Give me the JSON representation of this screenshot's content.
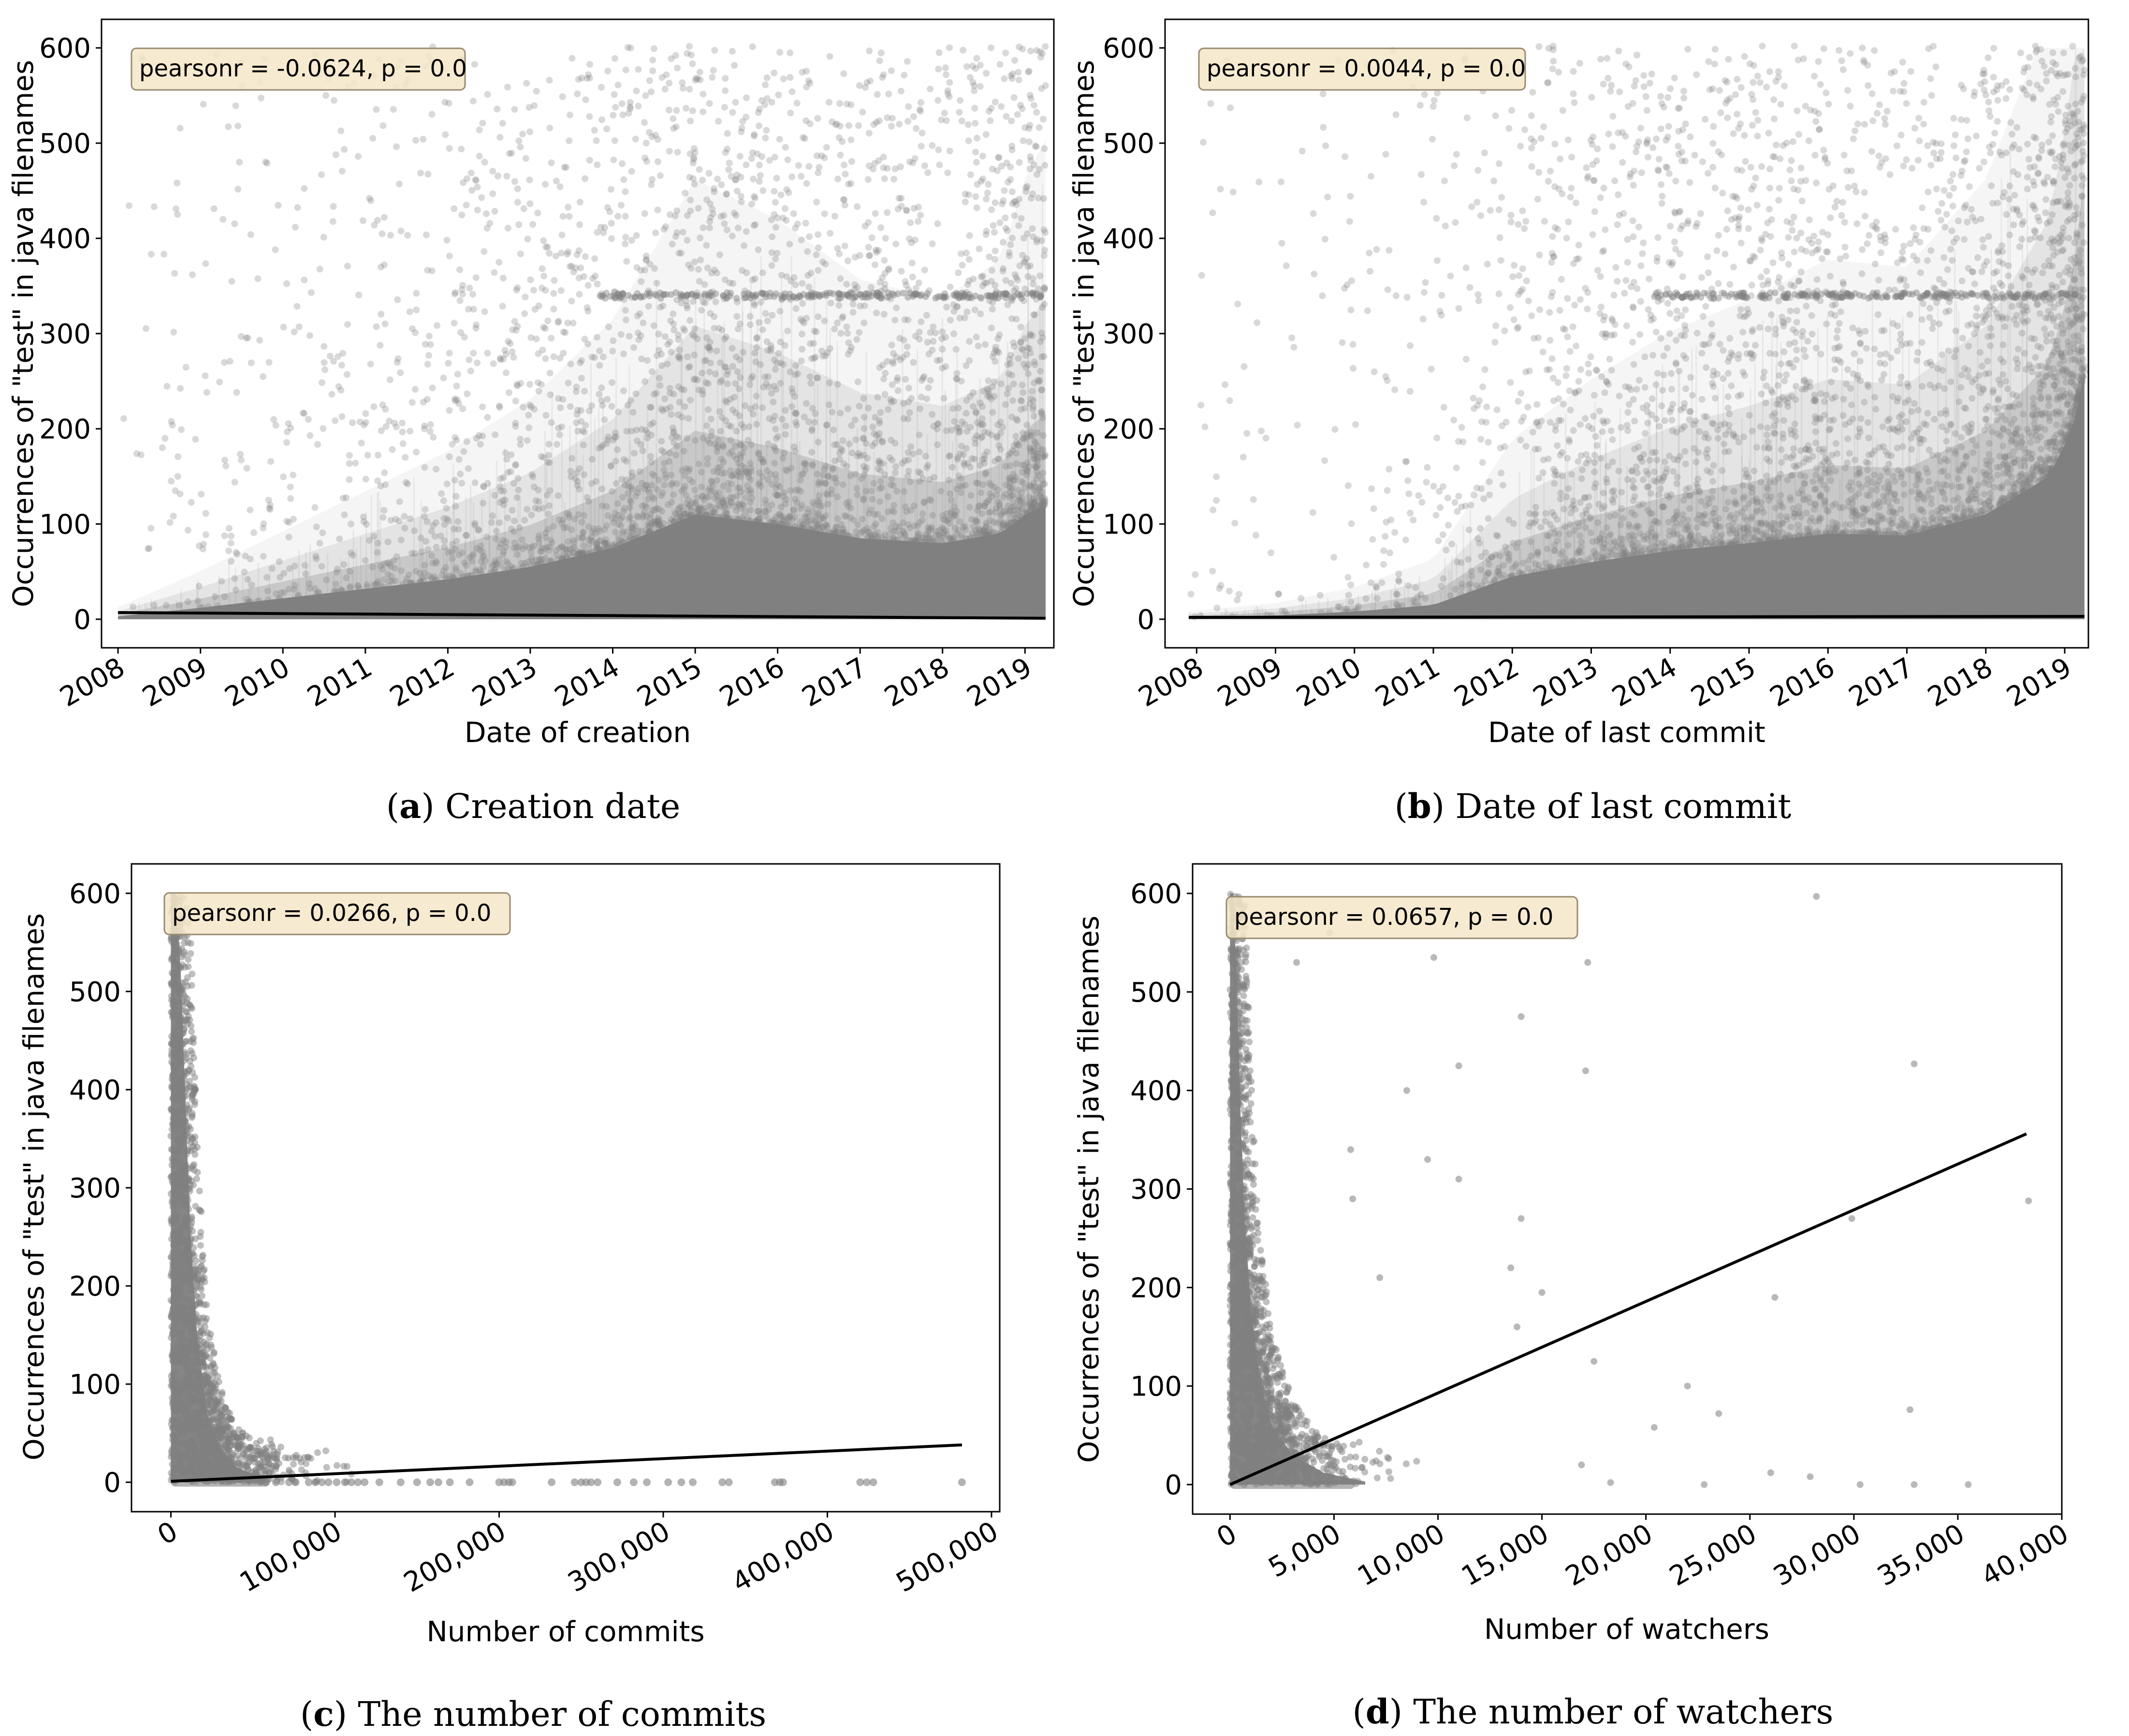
{
  "chart_data": [
    {
      "id": "a",
      "type": "scatter",
      "caption_letter": "a",
      "caption_text": "Creation date",
      "xlabel": "Date of creation",
      "ylabel": "Occurrences of \"test\" in java filenames",
      "stat_text": "pearsonr = -0.0624, p = 0.0",
      "xlim": [
        2007.8,
        2019.35
      ],
      "ylim": [
        -30,
        630
      ],
      "x_ticks": [
        2008,
        2009,
        2010,
        2011,
        2012,
        2013,
        2014,
        2015,
        2016,
        2017,
        2018,
        2019
      ],
      "x_tick_labels": [
        "2008",
        "2009",
        "2010",
        "2011",
        "2012",
        "2013",
        "2014",
        "2015",
        "2016",
        "2017",
        "2018",
        "2019"
      ],
      "y_ticks": [
        0,
        100,
        200,
        300,
        400,
        500,
        600
      ],
      "y_tick_labels": [
        "0",
        "100",
        "200",
        "300",
        "400",
        "500",
        "600"
      ],
      "point_color": "#808080",
      "point_opacity": 0.3,
      "x_range": [
        2008.0,
        2019.25
      ],
      "y_max": 600,
      "band_y": 340,
      "band_x_range": [
        2013.8,
        2019.2
      ],
      "regression": {
        "x": [
          2008.0,
          2019.25
        ],
        "y": [
          7,
          1
        ]
      },
      "bulk": [
        [
          2008.0,
          3
        ],
        [
          2009.0,
          12
        ],
        [
          2010.0,
          22
        ],
        [
          2011.0,
          32
        ],
        [
          2012.0,
          42
        ],
        [
          2013.0,
          55
        ],
        [
          2014.0,
          75
        ],
        [
          2015.0,
          110
        ],
        [
          2016.0,
          100
        ],
        [
          2017.0,
          85
        ],
        [
          2018.0,
          80
        ],
        [
          2018.7,
          90
        ],
        [
          2019.0,
          110
        ],
        [
          2019.25,
          120
        ]
      ],
      "density": [
        [
          2008.0,
          0.15
        ],
        [
          2009.0,
          0.5
        ],
        [
          2010.0,
          0.8
        ],
        [
          2011.0,
          1.2
        ],
        [
          2012.0,
          1.6
        ],
        [
          2013.0,
          2.0
        ],
        [
          2014.0,
          2.6
        ],
        [
          2015.0,
          3.2
        ],
        [
          2016.0,
          2.8
        ],
        [
          2017.0,
          2.5
        ],
        [
          2018.0,
          2.2
        ],
        [
          2019.0,
          4.5
        ],
        [
          2019.25,
          5.5
        ]
      ],
      "bulk_style": "gradient"
    },
    {
      "id": "b",
      "type": "scatter",
      "caption_letter": "b",
      "caption_text": "Date of last commit",
      "xlabel": "Date of last commit",
      "ylabel": "Occurrences of \"test\" in java filenames",
      "stat_text": "pearsonr = 0.0044, p = 0.0",
      "xlim": [
        2007.6,
        2019.3
      ],
      "ylim": [
        -30,
        630
      ],
      "x_ticks": [
        2008,
        2009,
        2010,
        2011,
        2012,
        2013,
        2014,
        2015,
        2016,
        2017,
        2018,
        2019
      ],
      "x_tick_labels": [
        "2008",
        "2009",
        "2010",
        "2011",
        "2012",
        "2013",
        "2014",
        "2015",
        "2016",
        "2017",
        "2018",
        "2019"
      ],
      "y_ticks": [
        0,
        100,
        200,
        300,
        400,
        500,
        600
      ],
      "y_tick_labels": [
        "0",
        "100",
        "200",
        "300",
        "400",
        "500",
        "600"
      ],
      "point_color": "#808080",
      "point_opacity": 0.3,
      "x_range": [
        2007.9,
        2019.25
      ],
      "y_max": 600,
      "band_y": 340,
      "band_x_range": [
        2013.8,
        2019.2
      ],
      "regression": {
        "x": [
          2007.9,
          2019.25
        ],
        "y": [
          2,
          3
        ]
      },
      "bulk": [
        [
          2007.9,
          2
        ],
        [
          2009.0,
          4
        ],
        [
          2010.0,
          8
        ],
        [
          2011.0,
          15
        ],
        [
          2012.0,
          45
        ],
        [
          2013.0,
          60
        ],
        [
          2014.0,
          72
        ],
        [
          2015.0,
          80
        ],
        [
          2016.0,
          90
        ],
        [
          2017.0,
          88
        ],
        [
          2018.0,
          110
        ],
        [
          2018.8,
          150
        ],
        [
          2019.1,
          200
        ],
        [
          2019.25,
          260
        ]
      ],
      "density": [
        [
          2007.9,
          0.2
        ],
        [
          2009.0,
          0.3
        ],
        [
          2010.0,
          0.5
        ],
        [
          2011.0,
          0.8
        ],
        [
          2012.0,
          1.6
        ],
        [
          2013.0,
          2.2
        ],
        [
          2014.0,
          2.8
        ],
        [
          2015.0,
          3.0
        ],
        [
          2016.0,
          3.0
        ],
        [
          2017.0,
          2.8
        ],
        [
          2018.0,
          3.2
        ],
        [
          2019.0,
          5.5
        ],
        [
          2019.25,
          7.0
        ]
      ],
      "bulk_style": "gradient"
    },
    {
      "id": "c",
      "type": "scatter",
      "caption_letter": "c",
      "caption_text": "The number of commits",
      "xlabel": "Number of commits",
      "ylabel": "Occurrences of \"test\" in java filenames",
      "stat_text": "pearsonr = 0.0266, p = 0.0",
      "xlim": [
        -24000,
        505000
      ],
      "ylim": [
        -30,
        630
      ],
      "x_ticks": [
        0,
        100000,
        200000,
        300000,
        400000,
        500000
      ],
      "x_tick_labels": [
        "0",
        "100,000",
        "200,000",
        "300,000",
        "400,000",
        "500,000"
      ],
      "y_ticks": [
        0,
        100,
        200,
        300,
        400,
        500,
        600
      ],
      "y_tick_labels": [
        "0",
        "100",
        "200",
        "300",
        "400",
        "500",
        "600"
      ],
      "point_color": "#808080",
      "point_opacity": 0.5,
      "y_max": 600,
      "regression": {
        "x": [
          0,
          482000
        ],
        "y": [
          1,
          38
        ]
      },
      "bulk": [
        [
          0,
          600
        ],
        [
          3000,
          600
        ],
        [
          6000,
          520
        ],
        [
          9000,
          380
        ],
        [
          12000,
          250
        ],
        [
          16000,
          150
        ],
        [
          22000,
          70
        ],
        [
          30000,
          35
        ],
        [
          40000,
          15
        ],
        [
          55000,
          5
        ]
      ],
      "scatter_x_scale": 40000,
      "scatter_x_max": 120000,
      "zero_row": [
        58000,
        64000,
        72000,
        76000,
        84000,
        88000,
        92000,
        96000,
        101000,
        106000,
        110000,
        114000,
        118000,
        127000,
        140000,
        150000,
        158000,
        163000,
        170000,
        182000,
        200000,
        203000,
        206000,
        208000,
        232000,
        246000,
        250000,
        253000,
        256000,
        260000,
        272000,
        282000,
        290000,
        303000,
        311000,
        318000,
        336000,
        340000,
        368000,
        371000,
        373000,
        420000,
        424000,
        428000,
        482000
      ],
      "bulk_style": "solid"
    },
    {
      "id": "d",
      "type": "scatter",
      "caption_letter": "d",
      "caption_text": "The number of watchers",
      "xlabel": "Number of watchers",
      "ylabel": "Occurrences of \"test\" in java filenames",
      "stat_text": "pearsonr = 0.0657, p = 0.0",
      "xlim": [
        -1800,
        40000
      ],
      "ylim": [
        -30,
        630
      ],
      "x_ticks": [
        0,
        5000,
        10000,
        15000,
        20000,
        25000,
        30000,
        35000,
        40000
      ],
      "x_tick_labels": [
        "0",
        "5,000",
        "10,000",
        "15,000",
        "20,000",
        "25,000",
        "30,000",
        "35,000",
        "40,000"
      ],
      "y_ticks": [
        0,
        100,
        200,
        300,
        400,
        500,
        600
      ],
      "y_tick_labels": [
        "0",
        "100",
        "200",
        "300",
        "400",
        "500",
        "600"
      ],
      "point_color": "#808080",
      "point_opacity": 0.5,
      "y_max": 600,
      "regression": {
        "x": [
          0,
          38300
        ],
        "y": [
          0,
          356
        ]
      },
      "bulk": [
        [
          0,
          600
        ],
        [
          150,
          600
        ],
        [
          300,
          520
        ],
        [
          500,
          380
        ],
        [
          700,
          270
        ],
        [
          1000,
          180
        ],
        [
          1400,
          110
        ],
        [
          2000,
          60
        ],
        [
          3000,
          30
        ],
        [
          4500,
          12
        ],
        [
          6500,
          3
        ]
      ],
      "scatter_x_scale": 3000,
      "scatter_x_max": 12000,
      "outliers": [
        [
          28200,
          597
        ],
        [
          32900,
          427
        ],
        [
          38400,
          288
        ],
        [
          29900,
          270
        ],
        [
          32700,
          76
        ],
        [
          26200,
          190
        ],
        [
          23500,
          72
        ],
        [
          22000,
          100
        ],
        [
          20400,
          58
        ],
        [
          18300,
          2
        ],
        [
          22800,
          0
        ],
        [
          26000,
          12
        ],
        [
          27900,
          8
        ],
        [
          30300,
          0
        ],
        [
          32900,
          0
        ],
        [
          35500,
          0
        ],
        [
          17100,
          420
        ],
        [
          17200,
          530
        ],
        [
          14000,
          475
        ],
        [
          11000,
          425
        ],
        [
          11000,
          310
        ],
        [
          14000,
          270
        ],
        [
          15000,
          195
        ],
        [
          13500,
          220
        ],
        [
          13800,
          160
        ],
        [
          17500,
          125
        ],
        [
          16900,
          20
        ],
        [
          9800,
          535
        ],
        [
          8500,
          400
        ],
        [
          9500,
          330
        ],
        [
          5800,
          340
        ],
        [
          5900,
          290
        ],
        [
          7200,
          210
        ],
        [
          4800,
          560
        ],
        [
          3200,
          530
        ]
      ],
      "bulk_style": "solid"
    }
  ]
}
